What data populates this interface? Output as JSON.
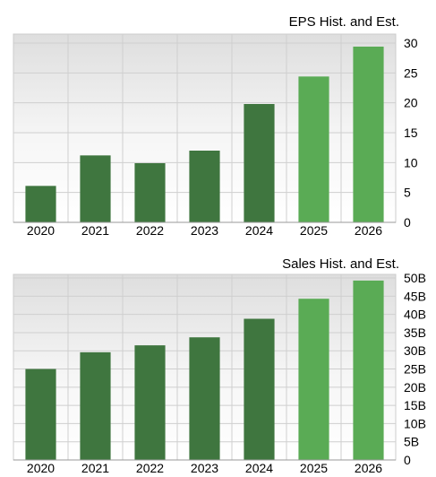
{
  "chart_data": [
    {
      "type": "bar",
      "title": "EPS Hist. and Est.",
      "categories": [
        "2020",
        "2021",
        "2022",
        "2023",
        "2024",
        "2025",
        "2026"
      ],
      "values": [
        6.1,
        11.2,
        9.9,
        12.0,
        19.8,
        24.4,
        29.4
      ],
      "estimate_flags": [
        false,
        false,
        false,
        false,
        false,
        true,
        true
      ],
      "ylim": [
        0,
        31.5
      ],
      "yticks": [
        "0",
        "5",
        "10",
        "15",
        "20",
        "25",
        "30"
      ],
      "ytick_values": [
        0,
        5,
        10,
        15,
        20,
        25,
        30
      ],
      "grid": true,
      "colors": {
        "historical": "#3f763f",
        "estimate": "#5aab55"
      }
    },
    {
      "type": "bar",
      "title": "Sales Hist. and Est.",
      "categories": [
        "2020",
        "2021",
        "2022",
        "2023",
        "2024",
        "2025",
        "2026"
      ],
      "values": [
        25.0,
        29.6,
        31.5,
        33.7,
        38.8,
        44.3,
        49.3
      ],
      "estimate_flags": [
        false,
        false,
        false,
        false,
        false,
        true,
        true
      ],
      "ylim": [
        0,
        51
      ],
      "yticks": [
        "0",
        "5B",
        "10B",
        "15B",
        "20B",
        "25B",
        "30B",
        "35B",
        "40B",
        "45B",
        "50B"
      ],
      "ytick_values": [
        0,
        5,
        10,
        15,
        20,
        25,
        30,
        35,
        40,
        45,
        50
      ],
      "grid": true,
      "colors": {
        "historical": "#3f763f",
        "estimate": "#5aab55"
      }
    }
  ]
}
